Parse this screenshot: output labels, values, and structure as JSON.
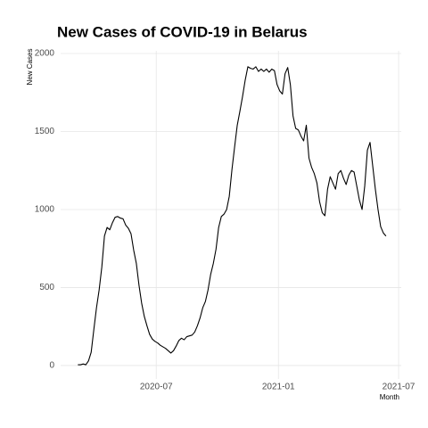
{
  "chart_data": {
    "type": "line",
    "title": "New Cases of COVID-19 in Belarus",
    "x_label": "Month",
    "y_label": "New Cases",
    "x": [
      "2020-03-05",
      "2020-03-09",
      "2020-03-13",
      "2020-03-17",
      "2020-03-21",
      "2020-03-25",
      "2020-03-29",
      "2020-04-02",
      "2020-04-06",
      "2020-04-10",
      "2020-04-14",
      "2020-04-18",
      "2020-04-22",
      "2020-04-26",
      "2020-04-30",
      "2020-05-04",
      "2020-05-08",
      "2020-05-12",
      "2020-05-16",
      "2020-05-20",
      "2020-05-24",
      "2020-05-28",
      "2020-06-01",
      "2020-06-05",
      "2020-06-09",
      "2020-06-13",
      "2020-06-17",
      "2020-06-21",
      "2020-06-25",
      "2020-06-29",
      "2020-07-03",
      "2020-07-07",
      "2020-07-11",
      "2020-07-15",
      "2020-07-19",
      "2020-07-23",
      "2020-07-27",
      "2020-07-31",
      "2020-08-04",
      "2020-08-08",
      "2020-08-12",
      "2020-08-16",
      "2020-08-20",
      "2020-08-24",
      "2020-08-28",
      "2020-09-01",
      "2020-09-05",
      "2020-09-09",
      "2020-09-13",
      "2020-09-17",
      "2020-09-21",
      "2020-09-25",
      "2020-09-29",
      "2020-10-03",
      "2020-10-07",
      "2020-10-11",
      "2020-10-15",
      "2020-10-19",
      "2020-10-23",
      "2020-10-27",
      "2020-10-31",
      "2020-11-04",
      "2020-11-08",
      "2020-11-12",
      "2020-11-16",
      "2020-11-20",
      "2020-11-24",
      "2020-11-28",
      "2020-12-02",
      "2020-12-06",
      "2020-12-10",
      "2020-12-14",
      "2020-12-18",
      "2020-12-22",
      "2020-12-26",
      "2020-12-30",
      "2021-01-03",
      "2021-01-07",
      "2021-01-11",
      "2021-01-15",
      "2021-01-19",
      "2021-01-23",
      "2021-01-27",
      "2021-01-31",
      "2021-02-04",
      "2021-02-08",
      "2021-02-12",
      "2021-02-16",
      "2021-02-20",
      "2021-02-24",
      "2021-02-28",
      "2021-03-04",
      "2021-03-08",
      "2021-03-12",
      "2021-03-16",
      "2021-03-20",
      "2021-03-24",
      "2021-03-28",
      "2021-04-01",
      "2021-04-05",
      "2021-04-09",
      "2021-04-13",
      "2021-04-17",
      "2021-04-21",
      "2021-04-25",
      "2021-04-29",
      "2021-05-03",
      "2021-05-07",
      "2021-05-11",
      "2021-05-15",
      "2021-05-19",
      "2021-05-23",
      "2021-05-27",
      "2021-05-31",
      "2021-06-04",
      "2021-06-08",
      "2021-06-12"
    ],
    "series": [
      {
        "name": "New Cases",
        "color": "#000000",
        "values": [
          5,
          5,
          10,
          5,
          30,
          85,
          230,
          370,
          485,
          630,
          830,
          885,
          870,
          915,
          950,
          955,
          945,
          940,
          900,
          880,
          845,
          740,
          655,
          515,
          400,
          315,
          255,
          200,
          170,
          155,
          145,
          130,
          120,
          110,
          95,
          80,
          95,
          125,
          160,
          175,
          165,
          185,
          190,
          195,
          215,
          255,
          305,
          370,
          410,
          485,
          585,
          655,
          745,
          885,
          955,
          970,
          1000,
          1085,
          1255,
          1400,
          1540,
          1630,
          1725,
          1830,
          1915,
          1905,
          1900,
          1915,
          1885,
          1900,
          1885,
          1900,
          1880,
          1900,
          1890,
          1800,
          1760,
          1740,
          1870,
          1910,
          1800,
          1600,
          1520,
          1510,
          1470,
          1440,
          1540,
          1330,
          1270,
          1230,
          1170,
          1050,
          980,
          960,
          1130,
          1210,
          1170,
          1130,
          1230,
          1250,
          1200,
          1160,
          1220,
          1250,
          1240,
          1150,
          1060,
          1000,
          1150,
          1380,
          1430,
          1280,
          1130,
          1000,
          890,
          850,
          830
        ]
      }
    ],
    "xlim": [
      "2020-02-08",
      "2021-07-05"
    ],
    "xticks": [
      {
        "value": "2020-07-01",
        "label": "2020-07"
      },
      {
        "value": "2021-01-01",
        "label": "2021-01"
      },
      {
        "value": "2021-07-01",
        "label": "2021-07"
      }
    ],
    "ylim": [
      -86,
      2017
    ],
    "yticks": [
      0,
      500,
      1000,
      1500,
      2000
    ],
    "grid": true
  }
}
